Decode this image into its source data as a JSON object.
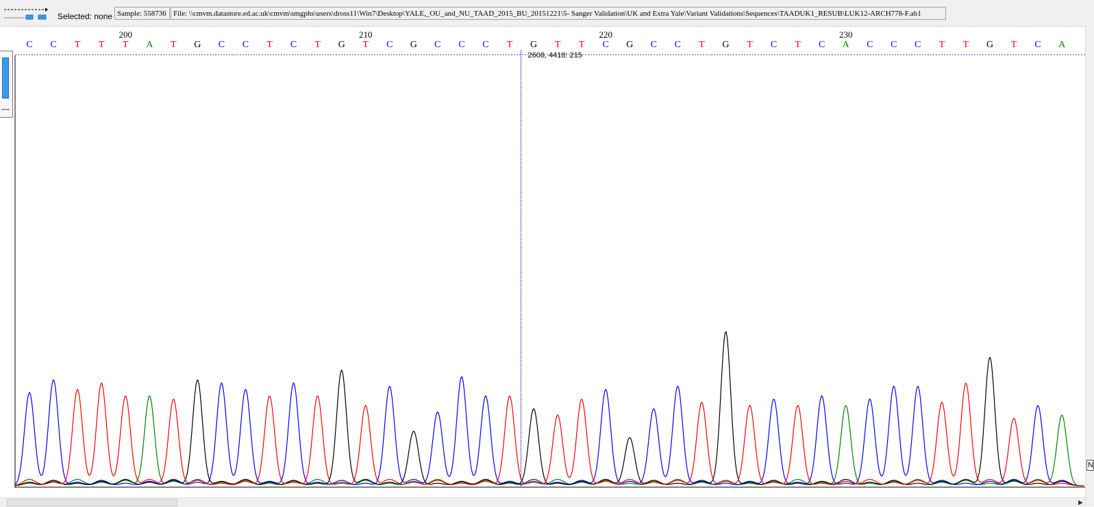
{
  "toolbar": {
    "selected_text": "Selected: none",
    "sample_text": "Sample: 558736",
    "file_text": "File: \\\\cmvm.datastore.ed.ac.uk\\cmvm\\smgphs\\users\\dross11\\Win7\\Desktop\\YALE,_OU_and_NU_TAAD_2015_BU_20151221\\5- Sanger Validation\\UK and Extra Yale\\Variant Validations\\Sequences\\TAADUK1_RESUB\\LUK12-ARCH778-F.ab1"
  },
  "sequence": {
    "first_position": 196,
    "bases": [
      "C",
      "C",
      "T",
      "T",
      "T",
      "A",
      "T",
      "G",
      "C",
      "C",
      "T",
      "C",
      "T",
      "G",
      "T",
      "C",
      "G",
      "C",
      "C",
      "C",
      "T",
      "G",
      "T",
      "T",
      "C",
      "G",
      "C",
      "C",
      "T",
      "G",
      "T",
      "C",
      "T",
      "C",
      "A",
      "C",
      "C",
      "C",
      "T",
      "T",
      "G",
      "T",
      "C",
      "A"
    ],
    "peak_heights": [
      0.29,
      0.33,
      0.3,
      0.32,
      0.28,
      0.28,
      0.27,
      0.33,
      0.32,
      0.3,
      0.28,
      0.32,
      0.28,
      0.36,
      0.25,
      0.31,
      0.17,
      0.23,
      0.34,
      0.28,
      0.28,
      0.24,
      0.22,
      0.27,
      0.3,
      0.15,
      0.24,
      0.31,
      0.26,
      0.48,
      0.25,
      0.27,
      0.25,
      0.28,
      0.25,
      0.27,
      0.31,
      0.31,
      0.26,
      0.32,
      0.4,
      0.21,
      0.25,
      0.22
    ],
    "position_labels": [
      {
        "text": "200",
        "index": 4
      },
      {
        "text": "210",
        "index": 14
      },
      {
        "text": "220",
        "index": 24
      },
      {
        "text": "230",
        "index": 34
      }
    ]
  },
  "base_colors": {
    "A": "#008000",
    "C": "#0000ff",
    "G": "#000000",
    "T": "#ff0000"
  },
  "cursor": {
    "readout": "2608, 4418: 215",
    "after_index": 20
  },
  "corner": {
    "text": "N"
  }
}
